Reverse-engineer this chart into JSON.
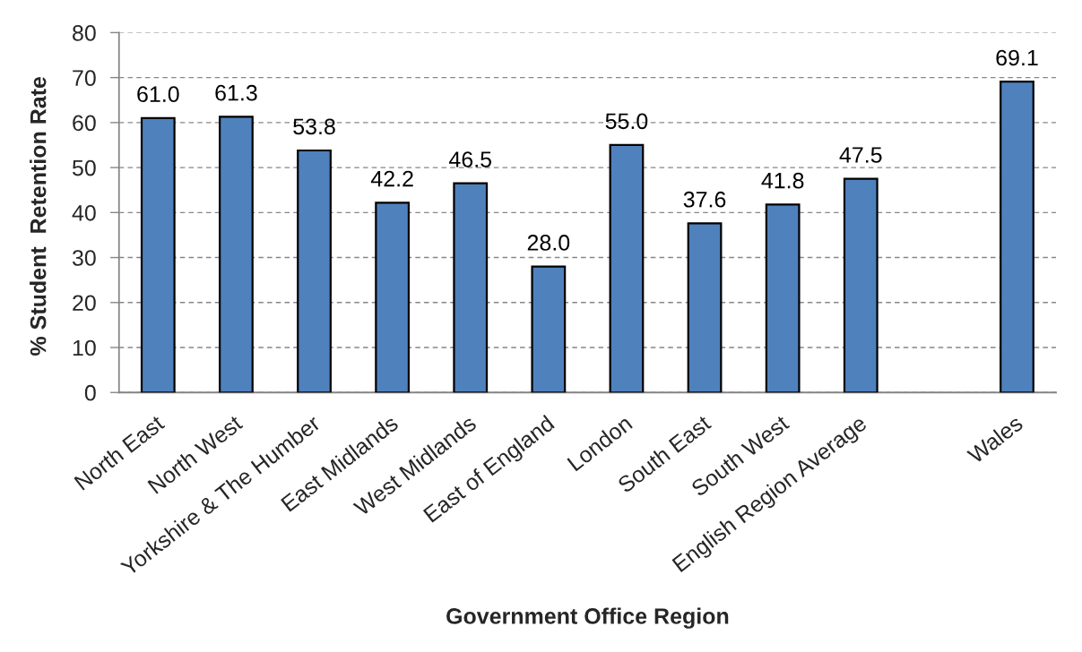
{
  "chart_data": {
    "type": "bar",
    "xlabel": "Government Office Region",
    "ylabel": "% Student  Retention Rate",
    "categories": [
      "North East",
      "North West",
      "Yorkshire & The Humber",
      "East Midlands",
      "West Midlands",
      "East of England",
      "London",
      "South East",
      "South West",
      "English Region Average",
      null,
      "Wales"
    ],
    "values": [
      61.0,
      61.3,
      53.8,
      42.2,
      46.5,
      28.0,
      55.0,
      37.6,
      41.8,
      47.5,
      null,
      69.1
    ],
    "value_labels": [
      "61.0",
      "61.3",
      "53.8",
      "42.2",
      "46.5",
      "28.0",
      "55.0",
      "37.6",
      "41.8",
      "47.5",
      null,
      "69.1"
    ],
    "color": "#4f81bd",
    "ylim": [
      0,
      80
    ],
    "yticks": [
      0,
      10,
      20,
      30,
      40,
      50,
      60,
      70,
      80
    ],
    "grid": "y"
  }
}
